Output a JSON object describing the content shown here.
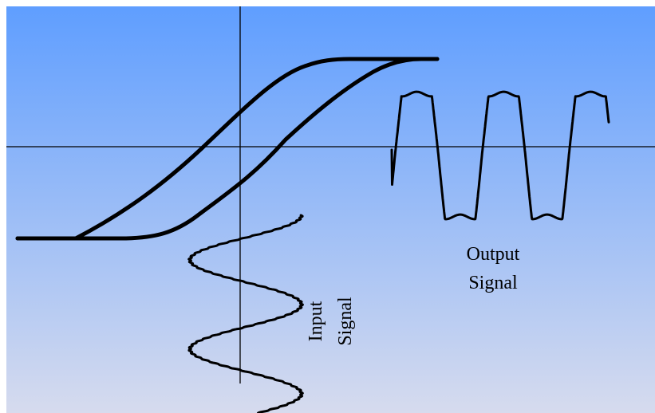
{
  "colors": {
    "background_top": "#5f9eff",
    "background_bottom": "#d6dbee",
    "axes": "#000000",
    "curve": "#000000",
    "page_border": "#ffffff"
  },
  "labels": {
    "output_line1": "Output",
    "output_line2": "Signal",
    "input_line1": "Input",
    "input_line2": "Signal"
  }
}
